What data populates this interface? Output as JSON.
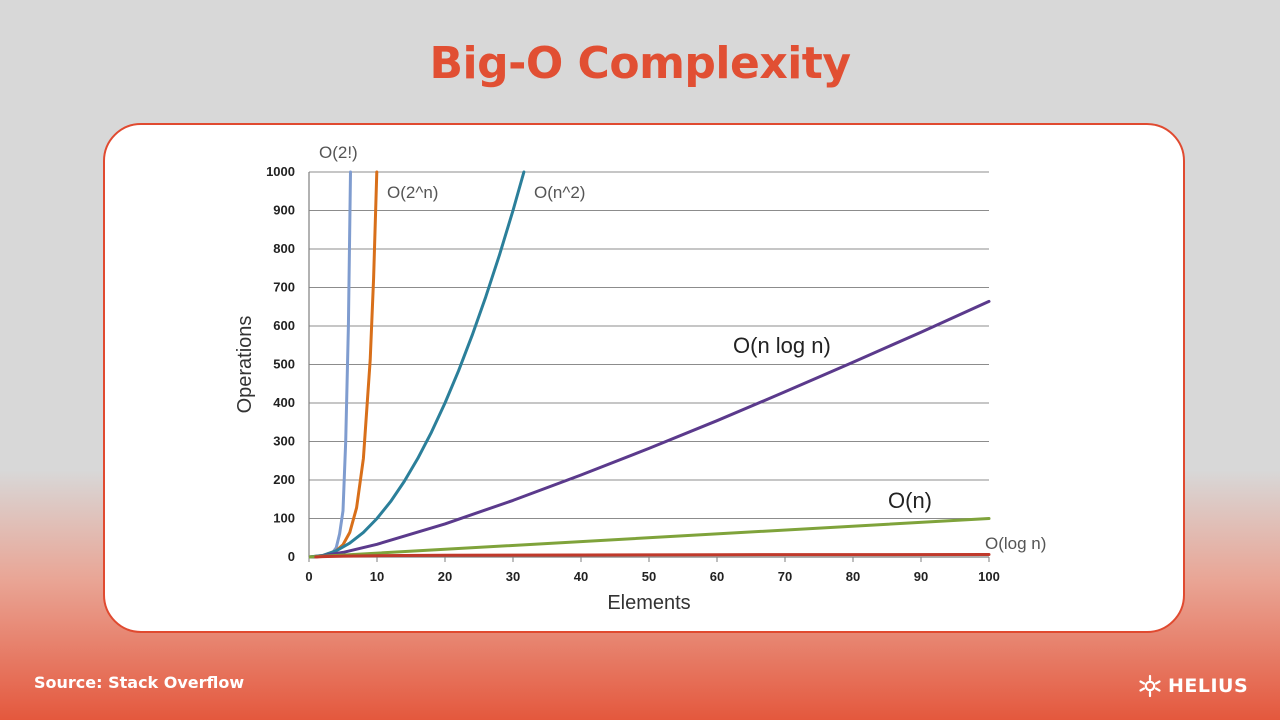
{
  "slide": {
    "title": "Big-O Complexity",
    "source": "Source: Stack Overflow",
    "logo_text": "HELIUS"
  },
  "colors": {
    "title": "#e14f33",
    "card_border": "#e04a30",
    "grid": "#8c8c8c",
    "axis": "#7f7f7f",
    "o_factorial": "#7f9ccf",
    "o_exponential": "#d86f1a",
    "o_quadratic": "#2b7f9a",
    "o_nlogn": "#5b3a8c",
    "o_linear": "#7fa33b",
    "o_log": "#c0392b"
  },
  "icons": {
    "logo": "helius-star-icon"
  },
  "chart_data": {
    "type": "line",
    "title": "",
    "xlabel": "Elements",
    "ylabel": "Operations",
    "xlim": [
      0,
      100
    ],
    "ylim": [
      0,
      1000
    ],
    "x_ticks": [
      0,
      10,
      20,
      30,
      40,
      50,
      60,
      70,
      80,
      90,
      100
    ],
    "y_ticks": [
      0,
      100,
      200,
      300,
      400,
      500,
      600,
      700,
      800,
      900,
      1000
    ],
    "grid": true,
    "series": [
      {
        "name": "O(2!)",
        "label_size": "small",
        "color_key": "o_factorial",
        "x": [
          0,
          1,
          2,
          3,
          3.5,
          4,
          4.5,
          5,
          5.4,
          5.8,
          6.1
        ],
        "y": [
          0,
          1,
          2,
          6,
          12,
          24,
          60,
          120,
          300,
          600,
          1000
        ]
      },
      {
        "name": "O(2^n)",
        "label_size": "small",
        "color_key": "o_exponential",
        "x": [
          0,
          2,
          4,
          5,
          6,
          7,
          8,
          9,
          9.5,
          9.97
        ],
        "y": [
          0,
          4,
          16,
          32,
          64,
          128,
          256,
          512,
          724,
          1000
        ]
      },
      {
        "name": "O(n^2)",
        "label_size": "small",
        "color_key": "o_quadratic",
        "x": [
          0,
          2,
          4,
          6,
          8,
          10,
          12,
          14,
          16,
          18,
          20,
          22,
          24,
          26,
          28,
          30,
          31.6
        ],
        "y": [
          0,
          4,
          16,
          36,
          64,
          100,
          144,
          196,
          256,
          324,
          400,
          484,
          576,
          676,
          784,
          900,
          1000
        ]
      },
      {
        "name": "O(n log n)",
        "label_size": "large",
        "color_key": "o_nlogn",
        "x": [
          0,
          1,
          5,
          10,
          20,
          30,
          40,
          50,
          60,
          70,
          80,
          90,
          100
        ],
        "y": [
          0,
          0,
          12,
          33,
          86,
          147,
          213,
          282,
          354,
          429,
          506,
          584,
          664
        ]
      },
      {
        "name": "O(n)",
        "label_size": "large",
        "color_key": "o_linear",
        "x": [
          0,
          100
        ],
        "y": [
          0,
          100
        ]
      },
      {
        "name": "O(log n)",
        "label_size": "small",
        "color_key": "o_log",
        "x": [
          1,
          2,
          5,
          10,
          20,
          40,
          60,
          80,
          100
        ],
        "y": [
          0,
          1,
          2.3,
          3.3,
          4.3,
          5.3,
          5.9,
          6.3,
          6.6
        ]
      }
    ]
  }
}
